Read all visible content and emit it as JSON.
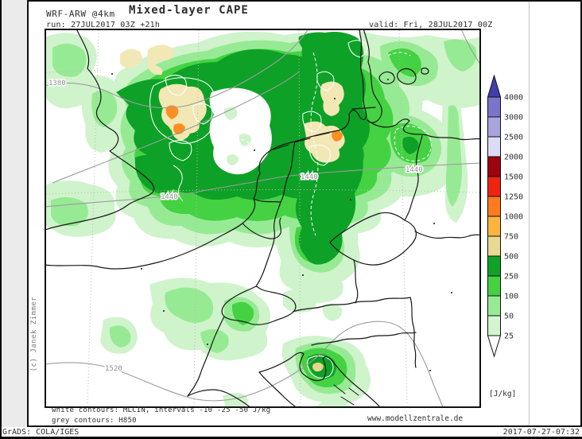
{
  "header": {
    "model": "WRF-ARW @4km",
    "run": "run: 27JUL2017 03Z +21h",
    "title": "Mixed-layer CAPE",
    "valid": "valid: Fri, 28JUL2017 00Z"
  },
  "map": {
    "h850_labels": {
      "left_1380": "1380",
      "mid_left_1440": "1440",
      "mid_center_1440": "1440",
      "mid_right_1440": "1440",
      "bottom_1520": "1520"
    }
  },
  "colorbar": {
    "units": "[J/kg]",
    "labels": [
      "4000",
      "3000",
      "2500",
      "2000",
      "1500",
      "1250",
      "1000",
      "750",
      "500",
      "250",
      "100",
      "50",
      "25"
    ],
    "colors": [
      "#413eae",
      "#7b74ca",
      "#aaa4de",
      "#dcdcf4",
      "#9e0310",
      "#ef2410",
      "#fd7a1e",
      "#fdb43e",
      "#e8da92",
      "#0fa228",
      "#44d243",
      "#97ea94",
      "#d2f5cf",
      "#ffffff"
    ]
  },
  "annotations": {
    "white_contours": "white contours: MLCIN, intervals -10 -25 -50 J/kg",
    "grey_contours": "grey contours: H850",
    "website": "www.modellzentrale.de",
    "credit": "(c) Janek Zimmer"
  },
  "statusbar": {
    "left": "GrADS: COLA/IGES",
    "right": "2017-07-27-07:32"
  }
}
